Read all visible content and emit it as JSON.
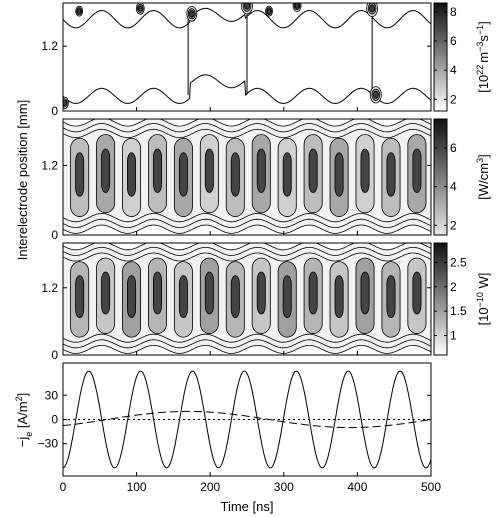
{
  "figure": {
    "shared_ylabel": "Interelectrode position [mm]",
    "xlabel": "Time [ns]"
  },
  "chart_data": [
    {
      "type": "heatmap",
      "xlim": [
        0,
        500
      ],
      "ylim": [
        0,
        2
      ],
      "yticks": [
        "0",
        "1.2"
      ],
      "colorbar": {
        "label_prefix": "[10",
        "label_exp": "22",
        "label_mid": "m",
        "label_exp2": "−3",
        "label_s": "s",
        "label_exp3": "−1",
        "label_suffix": "]",
        "range": [
          1.2,
          8.6
        ],
        "ticks": [
          "8",
          "6",
          "4",
          "2"
        ]
      },
      "structure": "sheath boundary oscillation with ionization bursts near 20, 170, 250, 420 ns"
    },
    {
      "type": "heatmap",
      "xlim": [
        0,
        500
      ],
      "ylim": [
        0,
        2
      ],
      "yticks": [
        "0",
        "1.2"
      ],
      "colorbar": {
        "label_prefix": "[W/cm",
        "label_exp": "3",
        "label_suffix": "]",
        "range": [
          1.5,
          7.5
        ],
        "ticks": [
          "6",
          "4",
          "2"
        ]
      },
      "structure": "periodic power deposition bands"
    },
    {
      "type": "heatmap",
      "xlim": [
        0,
        500
      ],
      "ylim": [
        0,
        2
      ],
      "yticks": [
        "0",
        "1.2"
      ],
      "colorbar": {
        "label_prefix": "[10",
        "label_exp": "−10",
        "label_suffix": " W]",
        "range": [
          0.6,
          2.9
        ],
        "ticks": [
          "2.5",
          "2",
          "1.5",
          "1"
        ]
      },
      "structure": "periodic bands with banded structure"
    },
    {
      "type": "line",
      "xlim": [
        0,
        500
      ],
      "ylim": [
        -70,
        70
      ],
      "xticks": [
        "0",
        "100",
        "200",
        "300",
        "400",
        "500"
      ],
      "yticks": [
        "30",
        "0",
        "−30"
      ],
      "ylabel_prefix": "−j",
      "ylabel_sub": "e",
      "ylabel_suffix": " [A/m",
      "ylabel_exp": "2",
      "ylabel_close": "]",
      "series": [
        {
          "style": "solid",
          "amplitude": 60,
          "period_ns": 70.5,
          "peak_ns": 35
        },
        {
          "style": "dashed",
          "amplitude": 10,
          "period_ns": 440,
          "peak_ns": 170
        },
        {
          "style": "dotted",
          "value": 0
        }
      ]
    }
  ]
}
